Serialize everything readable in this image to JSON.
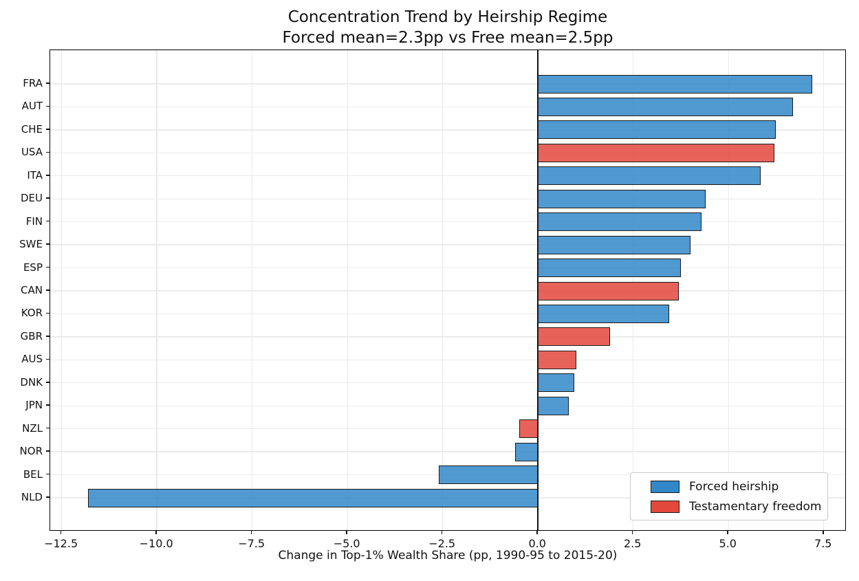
{
  "title": {
    "line1": "Concentration Trend by Heirship Regime",
    "line2": "Forced mean=2.3pp vs Free mean=2.5pp"
  },
  "chart_data": {
    "type": "bar",
    "orientation": "horizontal",
    "title": "Concentration Trend by Heirship Regime\nForced mean=2.3pp vs Free mean=2.5pp",
    "xlabel": "Change in Top-1% Wealth Share (pp, 1990-95 to 2015-20)",
    "ylabel": "",
    "categories": [
      "FRA",
      "AUT",
      "CHE",
      "USA",
      "ITA",
      "DEU",
      "FIN",
      "SWE",
      "ESP",
      "CAN",
      "KOR",
      "GBR",
      "AUS",
      "DNK",
      "JPN",
      "NZL",
      "NOR",
      "BEL",
      "NLD"
    ],
    "values": [
      7.2,
      6.7,
      6.25,
      6.2,
      5.85,
      4.4,
      4.3,
      4.0,
      3.75,
      3.7,
      3.45,
      1.9,
      1.0,
      0.95,
      0.8,
      -0.5,
      -0.6,
      -2.6,
      -11.8
    ],
    "groups": [
      "forced",
      "forced",
      "forced",
      "free",
      "forced",
      "forced",
      "forced",
      "forced",
      "forced",
      "free",
      "forced",
      "free",
      "free",
      "forced",
      "forced",
      "free",
      "forced",
      "forced",
      "forced"
    ],
    "group_means": {
      "forced_pp": 2.3,
      "free_pp": 2.5
    },
    "xlim": [
      -12.8,
      8.1
    ],
    "x_ticks": [
      -12.5,
      -10.0,
      -7.5,
      -5.0,
      -2.5,
      0.0,
      2.5,
      5.0,
      7.5
    ],
    "x_tick_labels": [
      "−12.5",
      "−10.0",
      "−7.5",
      "−5.0",
      "−2.5",
      "0.0",
      "2.5",
      "5.0",
      "7.5"
    ],
    "grid": true,
    "zero_line": true,
    "legend": {
      "position": "lower right",
      "entries": [
        {
          "label": "Forced heirship",
          "group": "forced"
        },
        {
          "label": "Testamentary freedom",
          "group": "free"
        }
      ]
    }
  },
  "colors": {
    "forced_legend": "#3187C9",
    "free_legend": "#E3483D",
    "bar_fill_opacity": 0.85,
    "bar_edge": "#1a1a1a",
    "grid": "#e9e9e9",
    "spine": "#000000",
    "zero_line": "#111111",
    "background": "#ffffff"
  }
}
